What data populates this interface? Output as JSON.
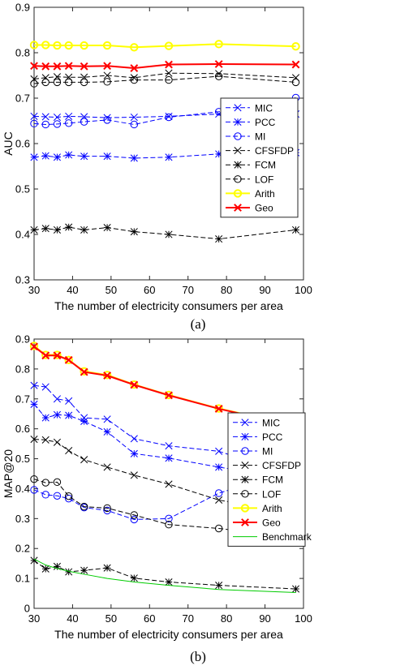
{
  "captions": {
    "a": "(a)",
    "b": "(b)"
  },
  "chart_data": [
    {
      "type": "line",
      "xlabel": "The number of electricity consumers per area",
      "ylabel": "AUC",
      "xlim": [
        30,
        100
      ],
      "ylim": [
        0.3,
        0.9
      ],
      "xticks": [
        30,
        40,
        50,
        60,
        70,
        80,
        90,
        100
      ],
      "xtick_labels": [
        "30",
        "40",
        "50",
        "60",
        "70",
        "80",
        "90",
        "100"
      ],
      "yticks": [
        0.3,
        0.4,
        0.5,
        0.6,
        0.7,
        0.8,
        0.9
      ],
      "ytick_labels": [
        "0.3",
        "0.4",
        "0.5",
        "0.6",
        "0.7",
        "0.8",
        "0.9"
      ],
      "grid": false,
      "legend_position": "right",
      "x": [
        30,
        33,
        36,
        39,
        43,
        49,
        56,
        65,
        78,
        98
      ],
      "series": [
        {
          "name": "MIC",
          "color": "#0000ff",
          "dash": "dashed",
          "marker": "x",
          "width": 1,
          "values": [
            0.66,
            0.659,
            0.658,
            0.66,
            0.659,
            0.657,
            0.658,
            0.66,
            0.665,
            0.665
          ]
        },
        {
          "name": "PCC",
          "color": "#0000ff",
          "dash": "dashed",
          "marker": "star",
          "width": 1,
          "values": [
            0.57,
            0.573,
            0.57,
            0.575,
            0.572,
            0.572,
            0.568,
            0.57,
            0.577,
            0.58
          ]
        },
        {
          "name": "MI",
          "color": "#0000ff",
          "dash": "dashed",
          "marker": "circle",
          "width": 1,
          "values": [
            0.644,
            0.642,
            0.643,
            0.645,
            0.648,
            0.652,
            0.642,
            0.658,
            0.67,
            0.701
          ]
        },
        {
          "name": "CFSFDP",
          "color": "#000000",
          "dash": "dashed",
          "marker": "x",
          "width": 1,
          "values": [
            0.742,
            0.745,
            0.747,
            0.746,
            0.746,
            0.75,
            0.745,
            0.755,
            0.754,
            0.745
          ]
        },
        {
          "name": "FCM",
          "color": "#000000",
          "dash": "dashed",
          "marker": "star",
          "width": 1,
          "values": [
            0.41,
            0.413,
            0.41,
            0.416,
            0.41,
            0.415,
            0.406,
            0.4,
            0.39,
            0.41
          ]
        },
        {
          "name": "LOF",
          "color": "#000000",
          "dash": "dashed",
          "marker": "circle",
          "width": 1,
          "values": [
            0.732,
            0.735,
            0.735,
            0.735,
            0.735,
            0.736,
            0.74,
            0.74,
            0.748,
            0.735
          ]
        },
        {
          "name": "Arith",
          "color": "#ffff00",
          "dash": "solid",
          "marker": "circle",
          "width": 2,
          "values": [
            0.817,
            0.817,
            0.816,
            0.816,
            0.816,
            0.816,
            0.812,
            0.815,
            0.819,
            0.814
          ]
        },
        {
          "name": "Geo",
          "color": "#ff0000",
          "dash": "solid",
          "marker": "x",
          "width": 2,
          "values": [
            0.771,
            0.77,
            0.77,
            0.771,
            0.77,
            0.771,
            0.766,
            0.774,
            0.775,
            0.774
          ]
        }
      ]
    },
    {
      "type": "line",
      "xlabel": "The number of electricity consumers per area",
      "ylabel": "MAP@20",
      "xlim": [
        30,
        100
      ],
      "ylim": [
        0,
        0.9
      ],
      "xticks": [
        30,
        40,
        50,
        60,
        70,
        80,
        90,
        100
      ],
      "xtick_labels": [
        "30",
        "40",
        "50",
        "60",
        "70",
        "80",
        "90",
        "100"
      ],
      "yticks": [
        0,
        0.1,
        0.2,
        0.3,
        0.4,
        0.5,
        0.6,
        0.7,
        0.8,
        0.9
      ],
      "ytick_labels": [
        "0",
        "0.1",
        "0.2",
        "0.3",
        "0.4",
        "0.5",
        "0.6",
        "0.7",
        "0.8",
        "0.9"
      ],
      "grid": false,
      "legend_position": "right",
      "x": [
        30,
        33,
        36,
        39,
        43,
        49,
        56,
        65,
        78,
        98
      ],
      "series": [
        {
          "name": "MIC",
          "color": "#0000ff",
          "dash": "dashed",
          "marker": "x",
          "width": 1,
          "values": [
            0.745,
            0.74,
            0.7,
            0.693,
            0.637,
            0.632,
            0.567,
            0.543,
            0.525,
            0.44
          ]
        },
        {
          "name": "PCC",
          "color": "#0000ff",
          "dash": "dashed",
          "marker": "star",
          "width": 1,
          "values": [
            0.682,
            0.637,
            0.647,
            0.645,
            0.625,
            0.59,
            0.517,
            0.502,
            0.472,
            0.432
          ]
        },
        {
          "name": "MI",
          "color": "#0000ff",
          "dash": "dashed",
          "marker": "circle",
          "width": 1,
          "values": [
            0.396,
            0.38,
            0.376,
            0.367,
            0.337,
            0.327,
            0.297,
            0.3,
            0.385,
            0.465
          ]
        },
        {
          "name": "CFSFDP",
          "color": "#000000",
          "dash": "dashed",
          "marker": "x",
          "width": 1,
          "values": [
            0.565,
            0.563,
            0.555,
            0.527,
            0.497,
            0.472,
            0.445,
            0.415,
            0.362,
            0.318
          ]
        },
        {
          "name": "FCM",
          "color": "#000000",
          "dash": "dashed",
          "marker": "star",
          "width": 1,
          "values": [
            0.16,
            0.132,
            0.14,
            0.122,
            0.127,
            0.135,
            0.101,
            0.088,
            0.077,
            0.065
          ]
        },
        {
          "name": "LOF",
          "color": "#000000",
          "dash": "dashed",
          "marker": "circle",
          "width": 1,
          "values": [
            0.432,
            0.42,
            0.422,
            0.375,
            0.34,
            0.335,
            0.312,
            0.28,
            0.267,
            0.236
          ]
        },
        {
          "name": "Arith",
          "color": "#ffff00",
          "dash": "solid",
          "marker": "circle",
          "width": 2,
          "values": [
            0.877,
            0.847,
            0.847,
            0.83,
            0.792,
            0.78,
            0.748,
            0.713,
            0.668,
            0.611
          ]
        },
        {
          "name": "Geo",
          "color": "#ff0000",
          "dash": "solid",
          "marker": "x",
          "width": 2,
          "values": [
            0.875,
            0.845,
            0.845,
            0.83,
            0.79,
            0.778,
            0.747,
            0.712,
            0.667,
            0.609
          ]
        },
        {
          "name": "Benchmark",
          "color": "#00cc00",
          "dash": "solid",
          "marker": "none",
          "width": 1,
          "values": [
            0.165,
            0.145,
            0.133,
            0.124,
            0.114,
            0.1,
            0.088,
            0.077,
            0.063,
            0.053
          ]
        }
      ]
    }
  ]
}
